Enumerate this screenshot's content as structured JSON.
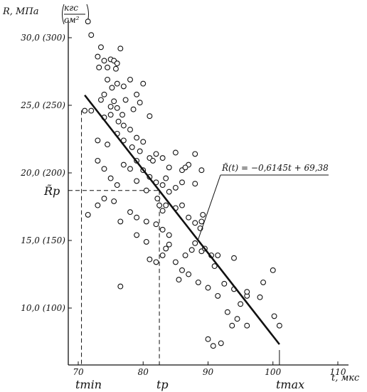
{
  "chart_data": {
    "type": "scatter",
    "xlabel": "t, мкс",
    "ylabel": "R, МПа",
    "ylabel_unit_num": "кгс",
    "ylabel_unit_den": "см²",
    "xlim": [
      68,
      112
    ],
    "ylim": [
      5,
      33
    ],
    "x_ticks": [
      70,
      80,
      90,
      100,
      110
    ],
    "x_tick_labels": [
      "70",
      "80",
      "90",
      "100",
      "110"
    ],
    "y_ticks": [
      10,
      15,
      20,
      25,
      30
    ],
    "y_tick_labels": [
      "10,0 (100)",
      "15,0 (150)",
      "20,0 (200)",
      "25,0 (250)",
      "30,0 (300)"
    ],
    "grid": false,
    "regression_label": "R̃(t) = −0,6145t + 69,38",
    "regression": {
      "slope": -0.6145,
      "intercept": 69.38,
      "x_range": [
        71,
        101
      ]
    },
    "annotations": {
      "r_p": "R̃p",
      "t_min": "tmin",
      "t_p": "tp",
      "t_max": "tmax"
    },
    "reference": {
      "t_min": 70.5,
      "t_p": 82.5,
      "t_max": 101,
      "r_p": 18.7,
      "r_at_tmin": 24.6
    },
    "points": [
      [
        71.5,
        31.2
      ],
      [
        72,
        30.2
      ],
      [
        73,
        28.6
      ],
      [
        73.5,
        29.3
      ],
      [
        74,
        28.3
      ],
      [
        74.5,
        27.8
      ],
      [
        75,
        28.4
      ],
      [
        75.5,
        28.3
      ],
      [
        75.8,
        27.7
      ],
      [
        76,
        28.1
      ],
      [
        76.5,
        29.2
      ],
      [
        73.2,
        27.8
      ],
      [
        74.5,
        26.9
      ],
      [
        75.2,
        26.3
      ],
      [
        76,
        26.6
      ],
      [
        77,
        26.4
      ],
      [
        78,
        26.9
      ],
      [
        79,
        25.8
      ],
      [
        80,
        26.6
      ],
      [
        73.5,
        25.4
      ],
      [
        74,
        25.8
      ],
      [
        75,
        24.9
      ],
      [
        75.5,
        25.3
      ],
      [
        76,
        24.8
      ],
      [
        76.8,
        24.3
      ],
      [
        77.3,
        25.4
      ],
      [
        78.5,
        24.7
      ],
      [
        79.5,
        25.2
      ],
      [
        71,
        24.6
      ],
      [
        72,
        24.6
      ],
      [
        74,
        24.1
      ],
      [
        75,
        24.3
      ],
      [
        76.2,
        23.8
      ],
      [
        77,
        23.5
      ],
      [
        78,
        23.2
      ],
      [
        79,
        22.6
      ],
      [
        81,
        24.2
      ],
      [
        73,
        22.4
      ],
      [
        74.5,
        22.1
      ],
      [
        76,
        22.9
      ],
      [
        77,
        22.4
      ],
      [
        78.3,
        21.9
      ],
      [
        79.5,
        21.6
      ],
      [
        80,
        22.3
      ],
      [
        81,
        21.1
      ],
      [
        82,
        21.4
      ],
      [
        83,
        21.1
      ],
      [
        84,
        20.4
      ],
      [
        85,
        21.5
      ],
      [
        86,
        20.2
      ],
      [
        87,
        20.6
      ],
      [
        88,
        21.4
      ],
      [
        73,
        20.9
      ],
      [
        74,
        20.3
      ],
      [
        75,
        19.6
      ],
      [
        76,
        19.1
      ],
      [
        77,
        20.6
      ],
      [
        78,
        20.3
      ],
      [
        79,
        20.9
      ],
      [
        80,
        20.2
      ],
      [
        81,
        19.7
      ],
      [
        81.5,
        20.9
      ],
      [
        82,
        19.3
      ],
      [
        83,
        19.1
      ],
      [
        83.5,
        19.6
      ],
      [
        84,
        18.6
      ],
      [
        85,
        18.9
      ],
      [
        86,
        19.3
      ],
      [
        86.5,
        20.4
      ],
      [
        88,
        19.2
      ],
      [
        89,
        20.2
      ],
      [
        79,
        19.4
      ],
      [
        80.5,
        18.7
      ],
      [
        82.2,
        18.1
      ],
      [
        82.5,
        17.6
      ],
      [
        83,
        17.2
      ],
      [
        83.5,
        17.6
      ],
      [
        85,
        17.4
      ],
      [
        86,
        17.6
      ],
      [
        87,
        16.7
      ],
      [
        88,
        16.3
      ],
      [
        89,
        16.4
      ],
      [
        71.5,
        16.9
      ],
      [
        73,
        17.6
      ],
      [
        74,
        18.1
      ],
      [
        75.5,
        17.9
      ],
      [
        76.5,
        16.4
      ],
      [
        78,
        17.1
      ],
      [
        79,
        16.7
      ],
      [
        80.5,
        16.4
      ],
      [
        82,
        16.2
      ],
      [
        83,
        15.8
      ],
      [
        84,
        15.4
      ],
      [
        79,
        15.4
      ],
      [
        80.5,
        14.9
      ],
      [
        81,
        13.6
      ],
      [
        82,
        13.4
      ],
      [
        83,
        13.9
      ],
      [
        83.5,
        14.4
      ],
      [
        84,
        14.7
      ],
      [
        85,
        13.4
      ],
      [
        86.5,
        13.9
      ],
      [
        87.5,
        14.3
      ],
      [
        88,
        14.8
      ],
      [
        89,
        14.2
      ],
      [
        89.5,
        14.4
      ],
      [
        90.5,
        13.9
      ],
      [
        91,
        13.1
      ],
      [
        86,
        12.8
      ],
      [
        85.5,
        12.1
      ],
      [
        87,
        12.5
      ],
      [
        88.5,
        11.9
      ],
      [
        90,
        11.5
      ],
      [
        91.5,
        10.9
      ],
      [
        92.5,
        11.8
      ],
      [
        94,
        11.4
      ],
      [
        95,
        10.3
      ],
      [
        93,
        9.7
      ],
      [
        94.5,
        9.2
      ],
      [
        96,
        10.9
      ],
      [
        76.5,
        11.6
      ],
      [
        90,
        7.7
      ],
      [
        90.8,
        7.2
      ],
      [
        92,
        7.4
      ],
      [
        93.7,
        8.7
      ],
      [
        96,
        8.7
      ],
      [
        98,
        10.8
      ],
      [
        98.5,
        11.9
      ],
      [
        100,
        12.8
      ],
      [
        101,
        8.7
      ],
      [
        100.2,
        9.4
      ],
      [
        91.5,
        13.9
      ],
      [
        94,
        13.7
      ],
      [
        96,
        11.2
      ],
      [
        88.8,
        15.9
      ],
      [
        89.2,
        16.9
      ]
    ]
  }
}
